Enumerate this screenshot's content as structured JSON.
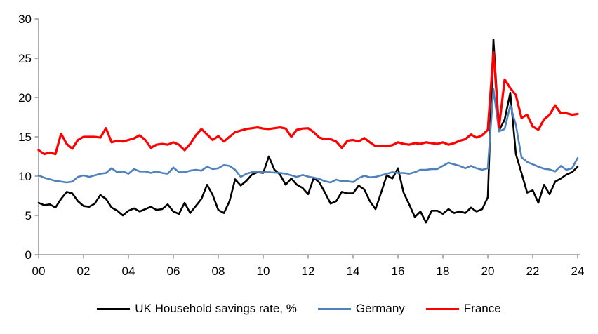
{
  "chart_data": {
    "type": "line",
    "x_start_year": 2000,
    "x_step_years": 0.25,
    "x_unit": "quarter",
    "xlim": [
      2000,
      2024.3
    ],
    "ylim": [
      0,
      30
    ],
    "grid": false,
    "legend_position": "bottom",
    "axis_color": "#a6a6a6",
    "y_ticks": [
      0,
      5,
      10,
      15,
      20,
      25,
      30
    ],
    "x_tick_years": [
      0,
      2,
      4,
      6,
      8,
      10,
      12,
      14,
      16,
      18,
      20,
      22,
      24
    ],
    "x_tick_labels": [
      "00",
      "02",
      "04",
      "06",
      "08",
      "10",
      "12",
      "14",
      "16",
      "18",
      "20",
      "22",
      "24"
    ],
    "series": [
      {
        "name": "UK Household savings rate, %",
        "color": "#000000",
        "stroke_width": 2.6,
        "values": [
          6.6,
          6.3,
          6.4,
          6.0,
          7.1,
          8.0,
          7.8,
          6.8,
          6.2,
          6.1,
          6.5,
          7.6,
          7.1,
          6.0,
          5.6,
          5.0,
          5.6,
          5.9,
          5.5,
          5.8,
          6.1,
          5.7,
          5.8,
          6.4,
          5.5,
          5.2,
          6.6,
          5.3,
          6.2,
          7.1,
          8.9,
          7.6,
          5.7,
          5.3,
          6.8,
          9.6,
          8.8,
          9.4,
          10.2,
          10.5,
          10.4,
          12.5,
          10.8,
          10.2,
          8.9,
          9.7,
          8.9,
          8.5,
          7.7,
          9.8,
          9.2,
          7.9,
          6.5,
          6.8,
          8.0,
          7.8,
          7.8,
          8.8,
          8.3,
          6.8,
          5.8,
          7.9,
          10.1,
          9.7,
          11.0,
          7.9,
          6.4,
          4.8,
          5.5,
          4.1,
          5.6,
          5.6,
          5.2,
          5.8,
          5.3,
          5.5,
          5.3,
          6.0,
          5.5,
          5.8,
          7.3,
          27.4,
          15.8,
          17.2,
          20.6,
          12.8,
          10.4,
          7.9,
          8.2,
          6.6,
          8.9,
          7.7,
          9.3,
          9.7,
          10.2,
          10.5,
          11.2
        ]
      },
      {
        "name": "Germany",
        "color": "#4f81bd",
        "stroke_width": 2.6,
        "values": [
          10.1,
          9.8,
          9.6,
          9.4,
          9.3,
          9.2,
          9.3,
          9.9,
          10.1,
          9.9,
          10.1,
          10.3,
          10.4,
          11.0,
          10.5,
          10.6,
          10.3,
          10.9,
          10.6,
          10.6,
          10.4,
          10.6,
          10.4,
          10.3,
          11.1,
          10.5,
          10.5,
          10.7,
          10.8,
          10.7,
          11.2,
          10.9,
          11.0,
          11.4,
          11.3,
          10.8,
          9.9,
          10.3,
          10.5,
          10.6,
          10.5,
          10.5,
          10.45,
          10.4,
          10.3,
          10.1,
          9.9,
          10.15,
          9.95,
          9.8,
          9.65,
          9.35,
          9.2,
          9.55,
          9.35,
          9.35,
          9.25,
          9.75,
          10.05,
          9.85,
          9.9,
          10.1,
          10.3,
          10.5,
          10.4,
          10.4,
          10.3,
          10.5,
          10.8,
          10.8,
          10.9,
          10.9,
          11.3,
          11.7,
          11.5,
          11.3,
          11.0,
          11.3,
          11.0,
          10.8,
          11.0,
          21.1,
          15.7,
          16.0,
          19.0,
          16.5,
          12.4,
          11.8,
          11.5,
          11.2,
          10.95,
          10.85,
          10.6,
          11.3,
          10.8,
          11.0,
          12.3
        ]
      },
      {
        "name": "France",
        "color": "#ff0000",
        "stroke_width": 3.2,
        "values": [
          13.3,
          12.8,
          13.0,
          12.8,
          15.4,
          14.1,
          13.5,
          14.6,
          15.0,
          15.0,
          15.0,
          14.9,
          16.1,
          14.3,
          14.5,
          14.4,
          14.6,
          14.8,
          15.2,
          14.6,
          13.6,
          14.0,
          14.1,
          14.0,
          14.3,
          14.0,
          13.3,
          14.1,
          15.2,
          16.0,
          15.3,
          14.6,
          15.1,
          14.4,
          15.0,
          15.6,
          15.8,
          16.0,
          16.1,
          16.2,
          16.05,
          16.0,
          16.1,
          16.2,
          16.05,
          15.0,
          15.9,
          16.05,
          16.1,
          15.6,
          14.9,
          14.7,
          14.7,
          14.4,
          13.6,
          14.5,
          14.6,
          14.4,
          14.85,
          14.3,
          13.8,
          13.8,
          13.8,
          13.95,
          14.3,
          14.1,
          14.0,
          14.2,
          14.1,
          14.3,
          14.2,
          14.1,
          14.3,
          14.0,
          14.2,
          14.5,
          14.7,
          15.3,
          14.9,
          15.2,
          15.9,
          25.8,
          16.2,
          22.3,
          21.2,
          20.3,
          17.4,
          17.8,
          16.3,
          15.9,
          17.2,
          17.8,
          19.0,
          18.0,
          18.0,
          17.8,
          17.9
        ]
      }
    ]
  },
  "legend": {
    "items": [
      {
        "label": "UK Household savings rate, %",
        "color": "#000000"
      },
      {
        "label": "Germany",
        "color": "#4f81bd"
      },
      {
        "label": "France",
        "color": "#ff0000"
      }
    ]
  }
}
